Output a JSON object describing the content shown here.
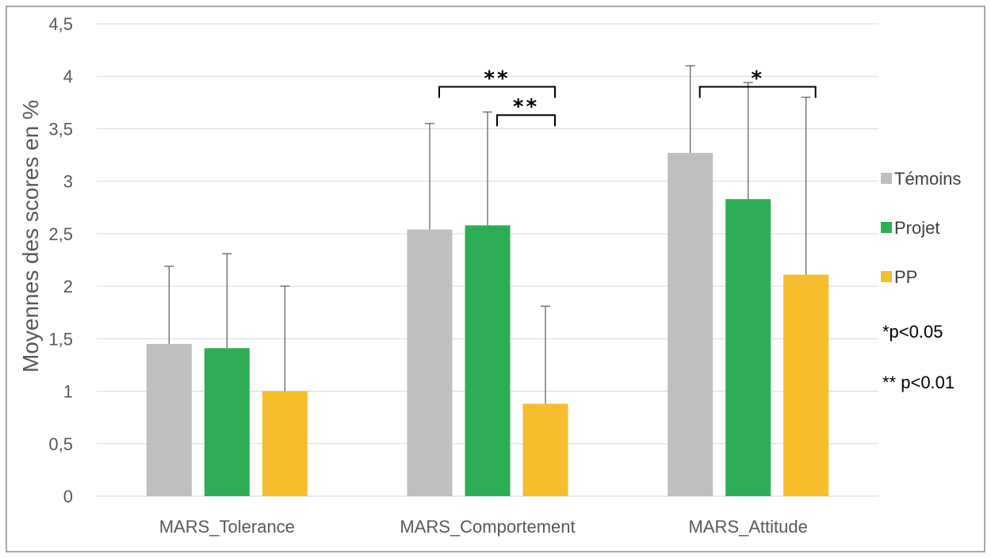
{
  "chart_data": {
    "type": "bar",
    "title": "",
    "xlabel": "",
    "ylabel": "Moyennes des scores en %",
    "ylim": [
      0,
      4.5
    ],
    "yticks": [
      "0",
      "0,5",
      "1",
      "1,5",
      "2",
      "2,5",
      "3",
      "3,5",
      "4",
      "4,5"
    ],
    "ytick_values": [
      0,
      0.5,
      1,
      1.5,
      2,
      2.5,
      3,
      3.5,
      4,
      4.5
    ],
    "grid": true,
    "legend_position": "right",
    "categories": [
      "MARS_Tolerance",
      "MARS_Comportement",
      "MARS_Attitude"
    ],
    "series": [
      {
        "name": "Témoins",
        "color": "#bfbfbf",
        "values": [
          1.45,
          2.54,
          3.27
        ],
        "error_upper": [
          2.19,
          3.55,
          4.1
        ]
      },
      {
        "name": "Projet",
        "color": "#2ead57",
        "values": [
          1.41,
          2.58,
          2.83
        ],
        "error_upper": [
          2.31,
          3.66,
          3.94
        ]
      },
      {
        "name": "PP",
        "color": "#f6bd2c",
        "values": [
          1.0,
          0.88,
          2.11
        ],
        "error_upper": [
          2.0,
          1.81,
          3.8
        ]
      }
    ],
    "significance": [
      {
        "category": 1,
        "from_series": 0,
        "to_series": 2,
        "level": 3.9,
        "label": "**"
      },
      {
        "category": 1,
        "from_series": 1,
        "to_series": 2,
        "level": 3.63,
        "label": "**"
      },
      {
        "category": 2,
        "from_series": 0,
        "to_series": 2,
        "level": 3.9,
        "label": "*"
      }
    ],
    "notes": [
      "*p<0.05",
      "** p<0.01"
    ]
  }
}
